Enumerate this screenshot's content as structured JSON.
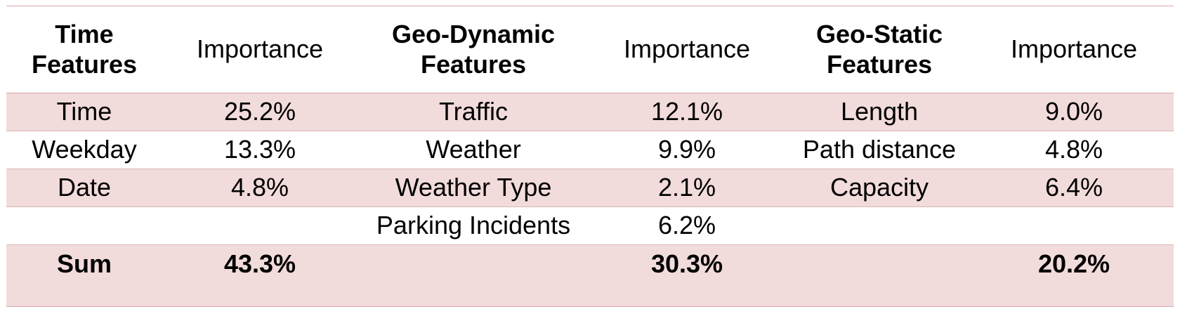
{
  "table": {
    "headers": [
      "Time\nFeatures",
      "Importance",
      "Geo-Dynamic\nFeatures",
      "Importance",
      "Geo-Static\nFeatures",
      "Importance"
    ],
    "rows": [
      [
        "Time",
        "25.2%",
        "Traffic",
        "12.1%",
        "Length",
        "9.0%"
      ],
      [
        "Weekday",
        "13.3%",
        "Weather",
        "9.9%",
        "Path distance",
        "4.8%"
      ],
      [
        "Date",
        "4.8%",
        "Weather Type",
        "2.1%",
        "Capacity",
        "6.4%"
      ],
      [
        "",
        "",
        "Parking Incidents",
        "6.2%",
        "",
        ""
      ]
    ],
    "sum_row": [
      "Sum",
      "43.3%",
      "",
      "30.3%",
      "",
      "20.2%"
    ],
    "colors": {
      "shade": "#f2dbdb",
      "border": "#d9a9ab"
    }
  }
}
